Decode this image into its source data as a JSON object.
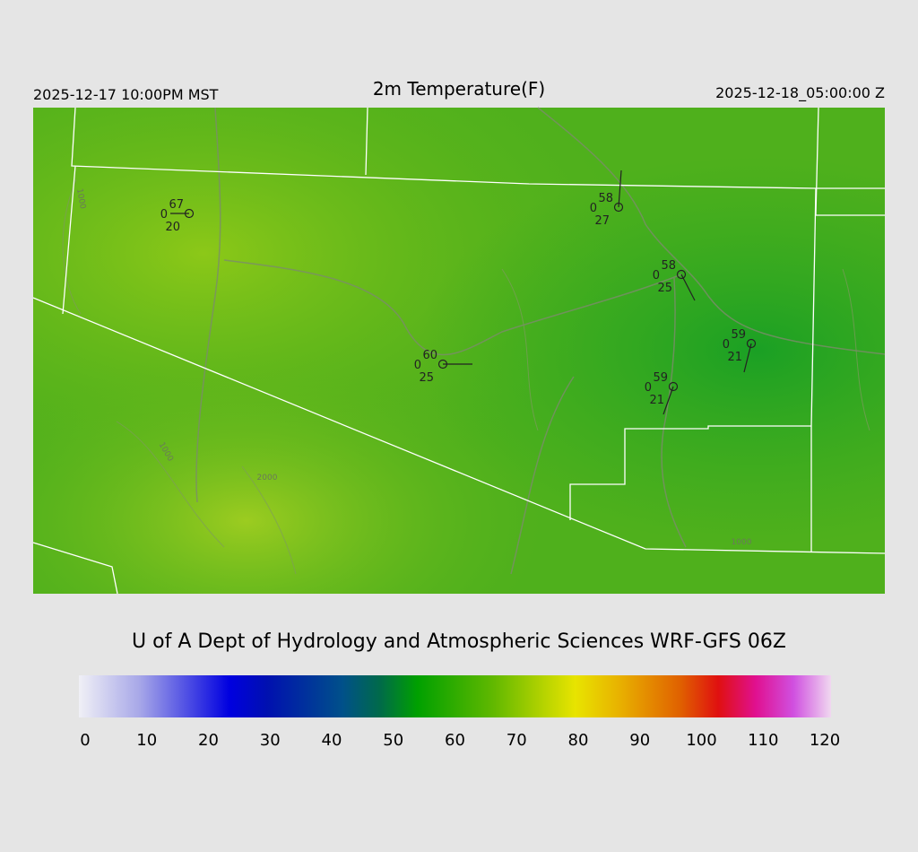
{
  "header": {
    "left": "2025-12-17 10:00PM MST",
    "title": "2m Temperature(F)",
    "right": "2025-12-18_05:00:00 Z"
  },
  "stations": [
    {
      "temp": "67",
      "wind": "0",
      "dew": "20"
    },
    {
      "temp": "58",
      "wind": "0",
      "dew": "27"
    },
    {
      "temp": "58",
      "wind": "0",
      "dew": "25"
    },
    {
      "temp": "59",
      "wind": "0",
      "dew": "21"
    },
    {
      "temp": "60",
      "wind": "0",
      "dew": "25"
    },
    {
      "temp": "59",
      "wind": "0",
      "dew": "21"
    }
  ],
  "contour_labels": [
    "1000",
    "1000",
    "2000",
    "1000"
  ],
  "credit": "U of A Dept of Hydrology and Atmospheric Sciences WRF-GFS 06Z",
  "colorbar": {
    "ticks": [
      0,
      10,
      20,
      30,
      40,
      50,
      60,
      70,
      80,
      90,
      100,
      110,
      120
    ]
  }
}
